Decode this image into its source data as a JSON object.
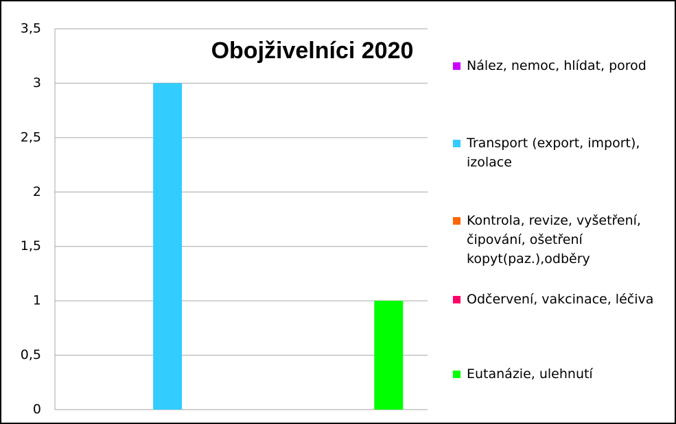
{
  "chart_data": {
    "type": "bar",
    "title": "Obojživelníci 2020",
    "categories": [
      null
    ],
    "series": [
      {
        "name": "Nález, nemoc, hlídat, porod",
        "color": "#cc00ff",
        "values": [
          0
        ]
      },
      {
        "name": "Transport (export, import), izolace",
        "color": "#33ccff",
        "values": [
          3
        ]
      },
      {
        "name": "Kontrola, revize, vyšetření, čipování, ošetření kopyt(paz.),odběry",
        "color": "#ff6600",
        "values": [
          0
        ]
      },
      {
        "name": "Odčervení, vakcinace, léčiva",
        "color": "#ff0066",
        "values": [
          0
        ]
      },
      {
        "name": "Eutanázie, ulehnutí",
        "color": "#00ff00",
        "values": [
          1
        ]
      }
    ],
    "ylim": [
      0,
      3.5
    ],
    "yticks": [
      0,
      {
        "value": 0.5,
        "label": "0,5"
      },
      1,
      {
        "value": 1.5,
        "label": "1,5"
      },
      2,
      {
        "value": 2.5,
        "label": "2,5"
      },
      3,
      {
        "value": 3.5,
        "label": "3,5"
      }
    ],
    "grid": true,
    "legend": "right"
  }
}
